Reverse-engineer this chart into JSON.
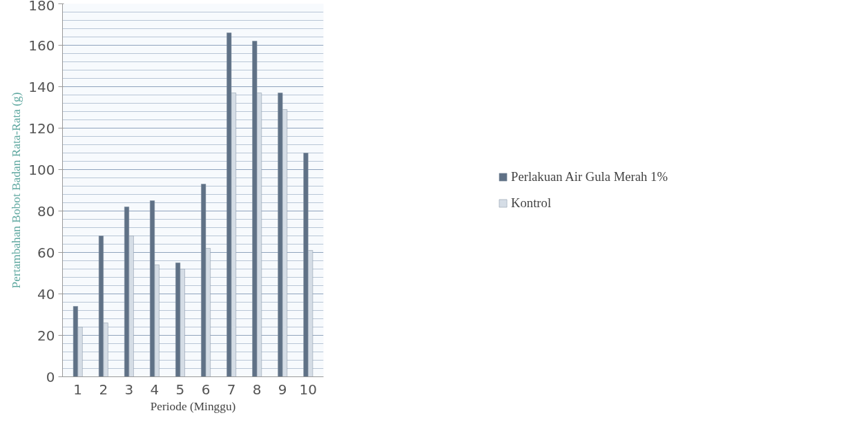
{
  "chart_data": {
    "type": "bar",
    "xlabel": "Periode (Minggu)",
    "ylabel": "Pertambahan Bobot Badan Rata-Rata (g)",
    "categories": [
      "1",
      "2",
      "3",
      "4",
      "5",
      "6",
      "7",
      "8",
      "9",
      "10"
    ],
    "series": [
      {
        "name": "Perlakuan Air Gula Merah 1%",
        "color": "#5f7186",
        "values": [
          34,
          68,
          82,
          85,
          55,
          93,
          166,
          162,
          137,
          108
        ]
      },
      {
        "name": "Kontrol",
        "color": "#d5dde6",
        "values": [
          24,
          26,
          68,
          54,
          52,
          62,
          137,
          137,
          129,
          61
        ]
      }
    ],
    "ylim": [
      0,
      180
    ],
    "yticks": [
      0,
      20,
      40,
      60,
      80,
      100,
      120,
      140,
      160,
      180
    ],
    "grid": "y",
    "legend": "right"
  }
}
